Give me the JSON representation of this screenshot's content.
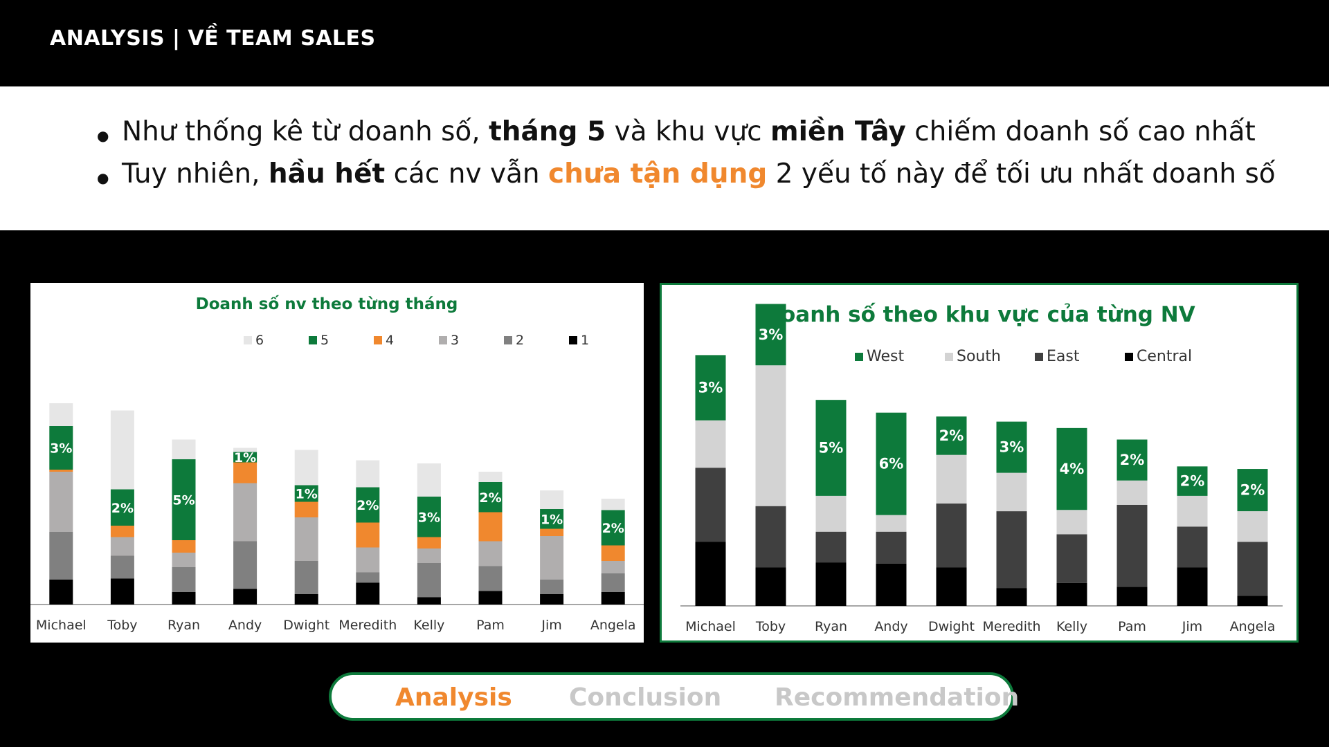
{
  "header": {
    "title": "ANALYSIS | VỀ  TEAM SALES"
  },
  "bullets": [
    {
      "pre": "Như thống kê từ doanh số, ",
      "b1": "tháng 5",
      "mid": " và khu vực ",
      "b2": "miền Tây",
      "post": " chiếm doanh số cao nhất"
    },
    {
      "pre": "Tuy nhiên, ",
      "b1": "hầu hết",
      "mid": " các nv vẫn ",
      "hl": "chưa tận dụng",
      "post": " 2 yếu tố này để tối ưu nhất doanh số"
    }
  ],
  "nav": {
    "tabs": [
      "Analysis",
      "Conclusion",
      "Recommendation"
    ],
    "active": "Analysis"
  },
  "chart_data": [
    {
      "type": "bar",
      "stacked": true,
      "title": "Doanh số nv theo từng tháng",
      "categories": [
        "Michael",
        "Toby",
        "Ryan",
        "Andy",
        "Dwight",
        "Meredith",
        "Kelly",
        "Pam",
        "Jim",
        "Angela"
      ],
      "legend_order": [
        "6",
        "5",
        "4",
        "3",
        "2",
        "1"
      ],
      "series": [
        {
          "name": "1",
          "color": "#000000",
          "values": [
            1.2,
            1.25,
            0.6,
            0.75,
            0.5,
            1.05,
            0.35,
            0.65,
            0.5,
            0.6
          ]
        },
        {
          "name": "2",
          "color": "#808080",
          "values": [
            2.3,
            1.1,
            1.2,
            2.3,
            1.6,
            0.5,
            1.65,
            1.2,
            0.7,
            0.9
          ]
        },
        {
          "name": "3",
          "color": "#b0aeae",
          "values": [
            2.9,
            0.9,
            0.7,
            2.8,
            2.1,
            1.2,
            0.7,
            1.2,
            2.1,
            0.6
          ]
        },
        {
          "name": "4",
          "color": "#f0882e",
          "values": [
            0.1,
            0.55,
            0.6,
            1.0,
            0.75,
            1.2,
            0.55,
            1.4,
            0.35,
            0.75
          ]
        },
        {
          "name": "5",
          "color": "#0d7a3b",
          "values": [
            2.1,
            1.75,
            3.9,
            0.5,
            0.8,
            1.7,
            1.95,
            1.45,
            0.95,
            1.7
          ]
        },
        {
          "name": "6",
          "color": "#e6e6e6",
          "values": [
            1.1,
            3.8,
            0.95,
            0.2,
            1.7,
            1.3,
            1.6,
            0.5,
            0.9,
            0.55
          ]
        }
      ],
      "labels": [
        "3%",
        "2%",
        "5%",
        "1%",
        "1%",
        "2%",
        "3%",
        "2%",
        "1%",
        "2%"
      ],
      "label_series": "5"
    },
    {
      "type": "bar",
      "stacked": true,
      "title": "Doanh số theo khu vực của từng NV",
      "categories": [
        "Michael",
        "Toby",
        "Ryan",
        "Andy",
        "Dwight",
        "Meredith",
        "Kelly",
        "Pam",
        "Jim",
        "Angela"
      ],
      "legend_order": [
        "West",
        "South",
        "East",
        "Central"
      ],
      "series": [
        {
          "name": "Central",
          "color": "#000000",
          "values": [
            2.5,
            1.5,
            1.7,
            1.65,
            1.5,
            0.7,
            0.9,
            0.75,
            1.5,
            0.4
          ]
        },
        {
          "name": "East",
          "color": "#404040",
          "values": [
            2.9,
            2.4,
            1.2,
            1.25,
            2.5,
            3.0,
            1.9,
            3.2,
            1.6,
            2.1
          ]
        },
        {
          "name": "South",
          "color": "#d3d3d3",
          "values": [
            1.85,
            5.5,
            1.4,
            0.65,
            1.9,
            1.5,
            0.95,
            0.95,
            1.2,
            1.2
          ]
        },
        {
          "name": "West",
          "color": "#0d7a3b",
          "values": [
            2.55,
            2.4,
            3.75,
            4.0,
            1.5,
            2.0,
            3.2,
            1.6,
            1.15,
            1.65
          ]
        }
      ],
      "labels": [
        "3%",
        "3%",
        "5%",
        "6%",
        "2%",
        "3%",
        "4%",
        "2%",
        "2%",
        "2%"
      ],
      "label_series": "West"
    }
  ]
}
